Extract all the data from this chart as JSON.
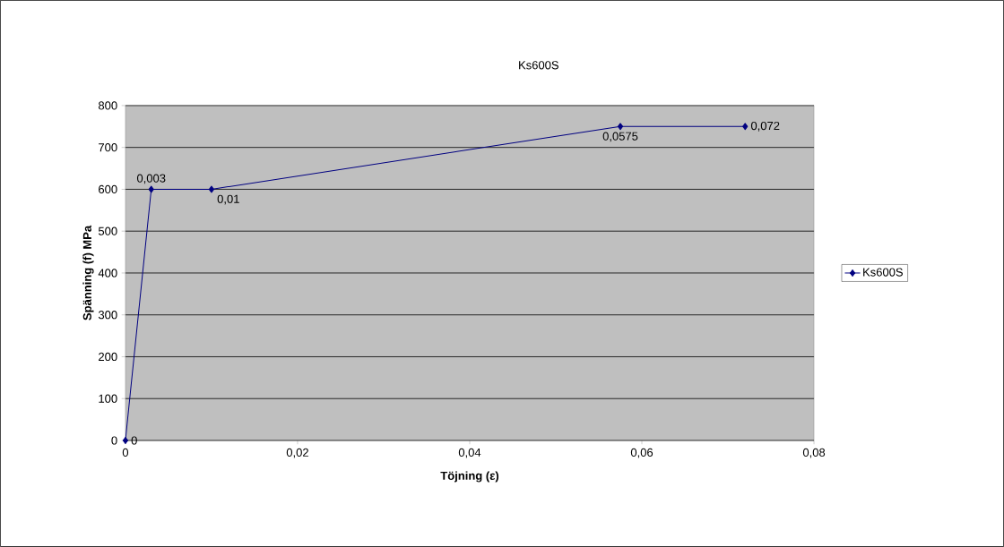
{
  "chart_data": {
    "type": "line",
    "title": "Ks600S",
    "xlabel": "Töjning (ε)",
    "ylabel": "Spänning (f) MPa",
    "series": [
      {
        "name": "Ks600S",
        "color": "#000080",
        "x": [
          0,
          0.003,
          0.01,
          0.0575,
          0.072
        ],
        "values": [
          0,
          600,
          600,
          750,
          750
        ]
      }
    ],
    "annotations": [
      {
        "text": "0",
        "x": 0,
        "y": 0
      },
      {
        "text": "0,003",
        "x": 0.003,
        "y": 600
      },
      {
        "text": "0,01",
        "x": 0.01,
        "y": 600
      },
      {
        "text": "0,0575",
        "x": 0.0575,
        "y": 750
      },
      {
        "text": "0,072",
        "x": 0.072,
        "y": 750
      }
    ],
    "xlim": [
      0,
      0.08
    ],
    "xticks": [
      0,
      {
        "value": 0.02,
        "label": "0,02"
      },
      {
        "value": 0.04,
        "label": "0,04"
      },
      {
        "value": 0.06,
        "label": "0,06"
      },
      {
        "value": 0.08,
        "label": "0,08"
      }
    ],
    "ylim": [
      0,
      800
    ],
    "yticks": [
      0,
      100,
      200,
      300,
      400,
      500,
      600,
      700,
      800
    ],
    "grid": "y",
    "legend": "right",
    "marker": "diamond",
    "line_style": "solid"
  }
}
